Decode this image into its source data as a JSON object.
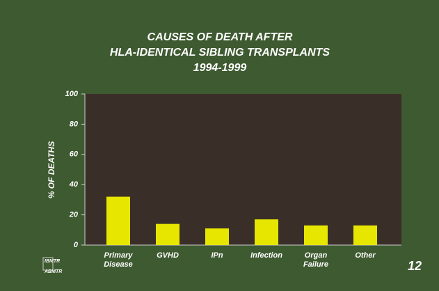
{
  "chart_data": {
    "type": "bar",
    "title": [
      "CAUSES OF DEATH AFTER",
      "HLA-IDENTICAL SIBLING TRANSPLANTS",
      "1994-1999"
    ],
    "y_label": "% OF DEATHS",
    "categories": [
      [
        "Primary",
        "Disease"
      ],
      [
        "GVHD"
      ],
      [
        "IPn"
      ],
      [
        "Infection"
      ],
      [
        "Organ",
        "Failure"
      ],
      [
        "Other"
      ]
    ],
    "values": [
      32,
      14,
      11,
      17,
      13,
      13
    ],
    "color": "#e6e600",
    "ylim": [
      0,
      100
    ],
    "yticks": [
      0,
      20,
      40,
      60,
      80,
      100
    ]
  },
  "logo": [
    "IBMTR",
    "ABMTR"
  ],
  "page_number": "12"
}
